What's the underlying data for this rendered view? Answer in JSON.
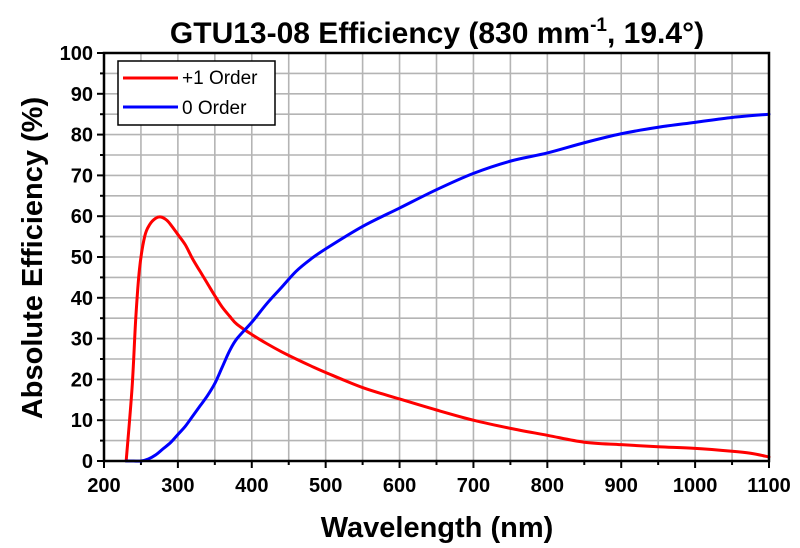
{
  "chart_data": {
    "type": "line",
    "title": "GTU13-08 Efficiency (830 mm-1, 19.4°)",
    "title_parts": {
      "main": "GTU13-08 Efficiency (830 mm",
      "superscript": "-1",
      "tail": ", 19.4°)"
    },
    "xlabel": "Wavelength (nm)",
    "ylabel": "Absolute Efficiency (%)",
    "xlim": [
      200,
      1100
    ],
    "ylim": [
      0,
      100
    ],
    "x_ticks": [
      "200",
      "300",
      "400",
      "500",
      "600",
      "700",
      "800",
      "900",
      "1000",
      "1100"
    ],
    "y_ticks": [
      "0",
      "10",
      "20",
      "30",
      "40",
      "50",
      "60",
      "70",
      "80",
      "90",
      "100"
    ],
    "grid": true,
    "legend_position": "top-left",
    "series": [
      {
        "name": "+1 Order",
        "color": "#ff0000",
        "x": [
          230,
          238,
          243,
          248,
          255,
          262,
          270,
          277,
          285,
          292,
          300,
          310,
          320,
          330,
          340,
          350,
          360,
          370,
          380,
          400,
          420,
          440,
          460,
          480,
          500,
          550,
          600,
          650,
          700,
          750,
          800,
          850,
          900,
          950,
          1000,
          1050,
          1075,
          1100
        ],
        "y": [
          0,
          18,
          35,
          47,
          55,
          58,
          59.5,
          59.8,
          59,
          57.5,
          55.5,
          53,
          49.5,
          46.5,
          43.5,
          40.5,
          37.7,
          35.5,
          33.5,
          31,
          28.8,
          26.8,
          25,
          23.3,
          21.7,
          18,
          15.2,
          12.5,
          10,
          8,
          6.3,
          4.6,
          4,
          3.5,
          3.1,
          2.4,
          1.9,
          1
        ]
      },
      {
        "name": "0 Order",
        "color": "#0000ff",
        "x": [
          230,
          240,
          250,
          260,
          270,
          280,
          290,
          300,
          310,
          320,
          330,
          340,
          350,
          360,
          370,
          380,
          400,
          420,
          440,
          460,
          480,
          500,
          550,
          600,
          650,
          700,
          750,
          800,
          850,
          900,
          950,
          1000,
          1050,
          1100
        ],
        "y": [
          0,
          0,
          0,
          0.5,
          1.5,
          3,
          4.5,
          6.5,
          8.5,
          11,
          13.5,
          16,
          19,
          23,
          27,
          30,
          34,
          38.5,
          42.5,
          46.5,
          49.5,
          52,
          57.5,
          62,
          66.5,
          70.5,
          73.5,
          75.5,
          78,
          80.2,
          81.8,
          83,
          84.2,
          85
        ]
      }
    ]
  }
}
